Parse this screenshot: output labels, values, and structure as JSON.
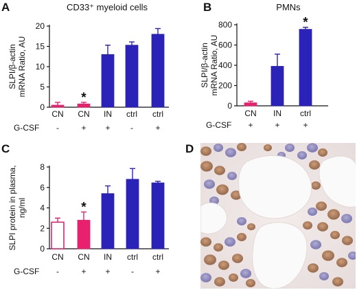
{
  "figure": {
    "letters": {
      "a": "A",
      "b": "B",
      "c": "C",
      "d": "D"
    },
    "colors": {
      "pink": "#e8206e",
      "blue": "#2b22b8",
      "axis": "#111111"
    },
    "micrograph": {
      "caption": "D",
      "description_icon": "tissue-micrograph"
    }
  },
  "chart_data": [
    {
      "id": "A",
      "type": "bar",
      "title": "CD33⁺ myeloid cells",
      "ylabel": [
        "SLPI/β-actin",
        "mRNA Ratio, AU"
      ],
      "xlabel": "",
      "ylim": [
        0,
        20
      ],
      "yticks": [
        0,
        5,
        10,
        15,
        20
      ],
      "categories": [
        "CN",
        "CN",
        "IN",
        "ctrl",
        "ctrl"
      ],
      "values": [
        0.5,
        0.8,
        13.0,
        15.3,
        18.0
      ],
      "errors": [
        0.7,
        0.4,
        2.3,
        0.8,
        1.4
      ],
      "fills": [
        "pink",
        "pink",
        "blue",
        "blue",
        "blue"
      ],
      "hollow": [
        false,
        false,
        false,
        false,
        false
      ],
      "significant": [
        false,
        true,
        false,
        false,
        false
      ],
      "gcsf_label": "G-CSF",
      "gcsf": [
        "-",
        "+",
        "+",
        "-",
        "+"
      ]
    },
    {
      "id": "B",
      "type": "bar",
      "title": "PMNs",
      "ylabel": [
        "SLPI/β-actin",
        "mRNA Ratio, AU"
      ],
      "xlabel": "",
      "ylim": [
        0,
        800
      ],
      "yticks": [
        0,
        200,
        400,
        600,
        800
      ],
      "categories": [
        "CN",
        "IN",
        "ctrl"
      ],
      "values": [
        30,
        390,
        755
      ],
      "errors": [
        15,
        120,
        20
      ],
      "fills": [
        "pink",
        "blue",
        "blue"
      ],
      "hollow": [
        false,
        false,
        false
      ],
      "significant": [
        false,
        false,
        true
      ],
      "gcsf_label": "G-CSF",
      "gcsf": [
        "+",
        "+",
        "+"
      ]
    },
    {
      "id": "C",
      "type": "bar",
      "title": "",
      "ylabel": [
        "SLPI protein in plasma,",
        "ng/ml"
      ],
      "xlabel": "",
      "ylim": [
        0,
        8
      ],
      "yticks": [
        0,
        2,
        4,
        6,
        8
      ],
      "categories": [
        "CN",
        "CN",
        "IN",
        "ctrl",
        "ctrl"
      ],
      "values": [
        2.6,
        2.8,
        5.4,
        6.8,
        6.45
      ],
      "errors": [
        0.4,
        0.8,
        0.75,
        1.05,
        0.15
      ],
      "fills": [
        "pink",
        "pink",
        "blue",
        "blue",
        "blue"
      ],
      "hollow": [
        true,
        false,
        false,
        false,
        false
      ],
      "significant": [
        false,
        true,
        false,
        false,
        false
      ],
      "gcsf_label": "G-CSF",
      "gcsf": [
        "-",
        "+",
        "+",
        "-",
        "+"
      ]
    }
  ]
}
